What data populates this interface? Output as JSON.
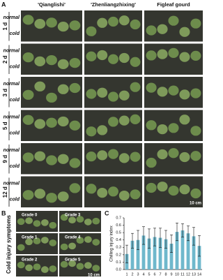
{
  "panel_labels": [
    "A",
    "B",
    "C"
  ],
  "panel_a": {
    "columns": [
      "'Qianglishi'",
      "'Zhenliangzhixing'",
      "Figleaf gourd"
    ],
    "rows": [
      {
        "day": "1 d",
        "conditions": [
          "normal",
          "cold"
        ]
      },
      {
        "day": "2 d",
        "conditions": [
          "normal",
          "cold"
        ]
      },
      {
        "day": "3 d",
        "conditions": [
          "normal",
          "cold"
        ]
      },
      {
        "day": "5 d",
        "conditions": [
          "normal",
          "cold"
        ]
      },
      {
        "day": "9 d",
        "conditions": [
          "normal",
          "cold"
        ]
      },
      {
        "day": "12 d",
        "conditions": [
          "normal",
          "cold"
        ]
      }
    ],
    "scale_bar": "10 cm"
  },
  "panel_b": {
    "title": "Cold injury symptoms",
    "grades": [
      "Grade 0",
      "Grade 3",
      "Grade 1",
      "Grade 4",
      "Grade 2",
      "Grade 5"
    ],
    "scale_bar": "10 cm"
  },
  "chart_data": {
    "type": "bar",
    "y_label": "Chilling injury index",
    "categories": [
      "1",
      "2",
      "3",
      "4",
      "5",
      "6",
      "7",
      "8",
      "9",
      "10",
      "11",
      "12",
      "13",
      "14"
    ],
    "values": [
      0.21,
      0.39,
      0.4,
      0.46,
      0.42,
      0.44,
      0.43,
      0.41,
      0.35,
      0.51,
      0.53,
      0.49,
      0.45,
      0.32
    ],
    "errors": [
      0.12,
      0.1,
      0.13,
      0.12,
      0.13,
      0.12,
      0.13,
      0.12,
      0.12,
      0.12,
      0.09,
      0.1,
      0.12,
      0.14
    ],
    "color": "#6fb8cc",
    "ylim": [
      0,
      0.7
    ],
    "yticks": [
      {
        "value": 0,
        "label": "0.0"
      },
      0.1,
      0.2,
      0.3,
      0.4,
      0.5,
      0.6,
      0.7
    ]
  }
}
